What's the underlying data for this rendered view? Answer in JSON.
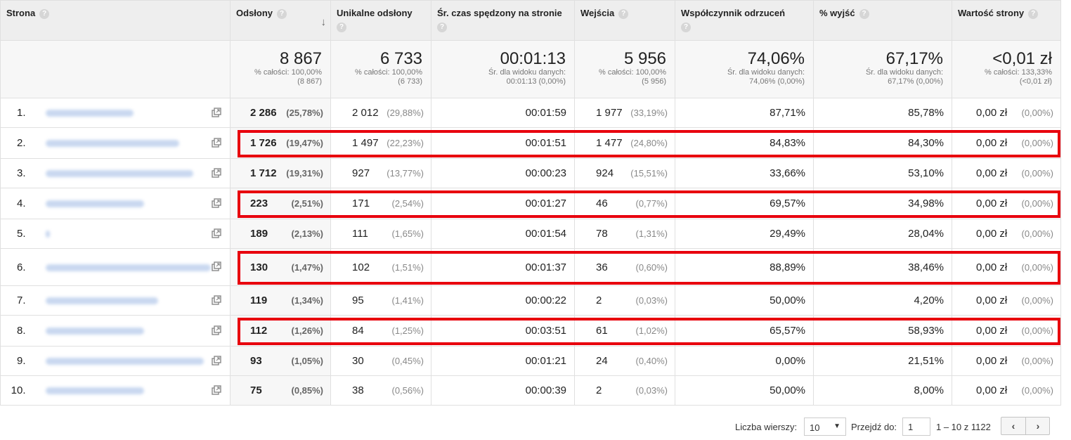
{
  "headers": {
    "strona": "Strona",
    "odslony": "Odsłony",
    "unikalne": "Unikalne odsłony",
    "czas": "Śr. czas spędzony na stronie",
    "wejscia": "Wejścia",
    "odrzucen": "Współczynnik odrzuceń",
    "wyjsc": "% wyjść",
    "wartosc": "Wartość strony",
    "help_icon": "?",
    "sort_icon": "↓"
  },
  "totals": {
    "odslony": {
      "big": "8 867",
      "sub1": "% całości: 100,00%",
      "sub2": "(8 867)"
    },
    "unikalne": {
      "big": "6 733",
      "sub1": "% całości: 100,00%",
      "sub2": "(6 733)"
    },
    "czas": {
      "big": "00:01:13",
      "sub1": "Śr. dla widoku danych:",
      "sub2": "00:01:13 (0,00%)"
    },
    "wejscia": {
      "big": "5 956",
      "sub1": "% całości: 100,00%",
      "sub2": "(5 956)"
    },
    "odrzucen": {
      "big": "74,06%",
      "sub1": "Śr. dla widoku danych:",
      "sub2": "74,06% (0,00%)"
    },
    "wyjsc": {
      "big": "67,17%",
      "sub1": "Śr. dla widoku danych:",
      "sub2": "67,17% (0,00%)"
    },
    "wartosc": {
      "big": "<0,01 zł",
      "sub1": "% całości: 133,33%",
      "sub2": "(<0,01 zł)"
    }
  },
  "rows": [
    {
      "idx": "1.",
      "odslony": "2 286",
      "odslony_pct": "(25,78%)",
      "unikalne": "2 012",
      "unikalne_pct": "(29,88%)",
      "czas": "00:01:59",
      "wejscia": "1 977",
      "wejscia_pct": "(33,19%)",
      "odrzucen": "87,71%",
      "wyjsc": "85,78%",
      "wartosc": "0,00 zł",
      "wartosc_pct": "(0,00%)"
    },
    {
      "idx": "2.",
      "odslony": "1 726",
      "odslony_pct": "(19,47%)",
      "unikalne": "1 497",
      "unikalne_pct": "(22,23%)",
      "czas": "00:01:51",
      "wejscia": "1 477",
      "wejscia_pct": "(24,80%)",
      "odrzucen": "84,83%",
      "wyjsc": "84,30%",
      "wartosc": "0,00 zł",
      "wartosc_pct": "(0,00%)"
    },
    {
      "idx": "3.",
      "odslony": "1 712",
      "odslony_pct": "(19,31%)",
      "unikalne": "927",
      "unikalne_pct": "(13,77%)",
      "czas": "00:00:23",
      "wejscia": "924",
      "wejscia_pct": "(15,51%)",
      "odrzucen": "33,66%",
      "wyjsc": "53,10%",
      "wartosc": "0,00 zł",
      "wartosc_pct": "(0,00%)"
    },
    {
      "idx": "4.",
      "odslony": "223",
      "odslony_pct": "(2,51%)",
      "unikalne": "171",
      "unikalne_pct": "(2,54%)",
      "czas": "00:01:27",
      "wejscia": "46",
      "wejscia_pct": "(0,77%)",
      "odrzucen": "69,57%",
      "wyjsc": "34,98%",
      "wartosc": "0,00 zł",
      "wartosc_pct": "(0,00%)"
    },
    {
      "idx": "5.",
      "odslony": "189",
      "odslony_pct": "(2,13%)",
      "unikalne": "111",
      "unikalne_pct": "(1,65%)",
      "czas": "00:01:54",
      "wejscia": "78",
      "wejscia_pct": "(1,31%)",
      "odrzucen": "29,49%",
      "wyjsc": "28,04%",
      "wartosc": "0,00 zł",
      "wartosc_pct": "(0,00%)"
    },
    {
      "idx": "6.",
      "odslony": "130",
      "odslony_pct": "(1,47%)",
      "unikalne": "102",
      "unikalne_pct": "(1,51%)",
      "czas": "00:01:37",
      "wejscia": "36",
      "wejscia_pct": "(0,60%)",
      "odrzucen": "88,89%",
      "wyjsc": "38,46%",
      "wartosc": "0,00 zł",
      "wartosc_pct": "(0,00%)"
    },
    {
      "idx": "7.",
      "odslony": "119",
      "odslony_pct": "(1,34%)",
      "unikalne": "95",
      "unikalne_pct": "(1,41%)",
      "czas": "00:00:22",
      "wejscia": "2",
      "wejscia_pct": "(0,03%)",
      "odrzucen": "50,00%",
      "wyjsc": "4,20%",
      "wartosc": "0,00 zł",
      "wartosc_pct": "(0,00%)"
    },
    {
      "idx": "8.",
      "odslony": "112",
      "odslony_pct": "(1,26%)",
      "unikalne": "84",
      "unikalne_pct": "(1,25%)",
      "czas": "00:03:51",
      "wejscia": "61",
      "wejscia_pct": "(1,02%)",
      "odrzucen": "65,57%",
      "wyjsc": "58,93%",
      "wartosc": "0,00 zł",
      "wartosc_pct": "(0,00%)"
    },
    {
      "idx": "9.",
      "odslony": "93",
      "odslony_pct": "(1,05%)",
      "unikalne": "30",
      "unikalne_pct": "(0,45%)",
      "czas": "00:01:21",
      "wejscia": "24",
      "wejscia_pct": "(0,40%)",
      "odrzucen": "0,00%",
      "wyjsc": "21,51%",
      "wartosc": "0,00 zł",
      "wartosc_pct": "(0,00%)"
    },
    {
      "idx": "10.",
      "odslony": "75",
      "odslony_pct": "(0,85%)",
      "unikalne": "38",
      "unikalne_pct": "(0,56%)",
      "czas": "00:00:39",
      "wejscia": "2",
      "wejscia_pct": "(0,03%)",
      "odrzucen": "50,00%",
      "wyjsc": "8,00%",
      "wartosc": "0,00 zł",
      "wartosc_pct": "(0,00%)"
    }
  ],
  "highlighted_rows": [
    "2.",
    "4.",
    "6.",
    "8."
  ],
  "icons": {
    "open_page": "external-link-icon",
    "help": "help-icon",
    "sort": "sort-down-icon",
    "prev": "chevron-left-icon",
    "next": "chevron-right-icon",
    "dropdown": "caret-down-icon"
  },
  "colors": {
    "highlight": "#e8000d",
    "header_bg": "#eeeeee",
    "link_blur": "#c9d8f0"
  },
  "footer": {
    "rows_label": "Liczba wierszy:",
    "rows_value": "10",
    "goto_label": "Przejdź do:",
    "goto_value": "1",
    "range": "1 – 10 z 1122",
    "prev": "‹",
    "next": "›",
    "caret": "▼"
  }
}
